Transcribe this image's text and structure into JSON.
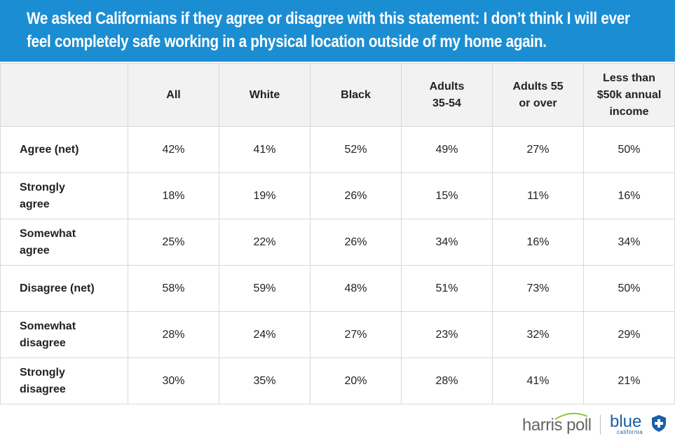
{
  "title": {
    "line1": "We asked Californians if they agree or disagree with this statement: I don’t think I will ever",
    "line2": "feel completely safe working in a physical location outside of my home again."
  },
  "chart_data": {
    "type": "table",
    "columns": [
      "All",
      "White",
      "Black",
      "Adults\n35-54",
      "Adults 55\nor over",
      "Less than\n$50k annual\nincome"
    ],
    "rows": [
      {
        "label": "Agree (net)",
        "values": [
          "42%",
          "41%",
          "52%",
          "49%",
          "27%",
          "50%"
        ]
      },
      {
        "label": "Strongly agree",
        "values": [
          "18%",
          "19%",
          "26%",
          "15%",
          "11%",
          "16%"
        ]
      },
      {
        "label": "Somewhat agree",
        "values": [
          "25%",
          "22%",
          "26%",
          "34%",
          "16%",
          "34%"
        ]
      },
      {
        "label": "Disagree (net)",
        "values": [
          "58%",
          "59%",
          "48%",
          "51%",
          "73%",
          "50%"
        ]
      },
      {
        "label": "Somewhat disagree",
        "values": [
          "28%",
          "24%",
          "27%",
          "23%",
          "32%",
          "29%"
        ]
      },
      {
        "label": "Strongly disagree",
        "values": [
          "30%",
          "35%",
          "20%",
          "28%",
          "41%",
          "21%"
        ]
      }
    ]
  },
  "footer": {
    "logo1": "harris poll",
    "logo2": "blue",
    "logo2_sub": "california"
  },
  "colors": {
    "banner": "#1b8ed3",
    "header_bg": "#f2f2f2",
    "brand_blue": "#1a5fa8"
  }
}
